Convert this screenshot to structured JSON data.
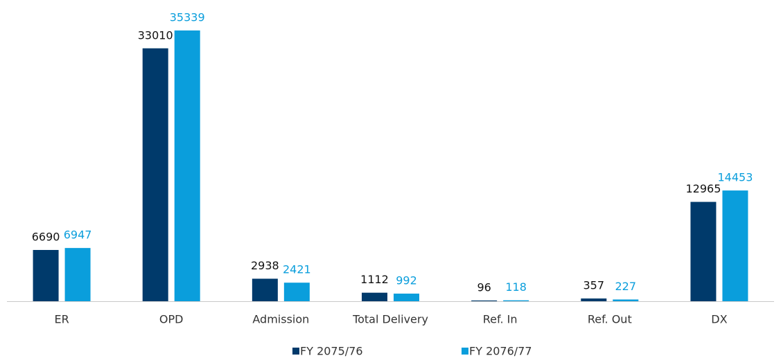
{
  "chart_data": {
    "type": "bar",
    "categories": [
      "ER",
      "OPD",
      "Admission",
      "Total Delivery",
      "Ref. In",
      "Ref. Out",
      "DX"
    ],
    "series": [
      {
        "name": "FY 2075/76",
        "color": "#003a6b",
        "values": [
          6690,
          33010,
          2938,
          1112,
          96,
          357,
          12965
        ]
      },
      {
        "name": "FY 2076/77",
        "color": "#0a9edc",
        "values": [
          6947,
          35339,
          2421,
          992,
          118,
          227,
          14453
        ]
      }
    ],
    "legend": "bottom"
  }
}
